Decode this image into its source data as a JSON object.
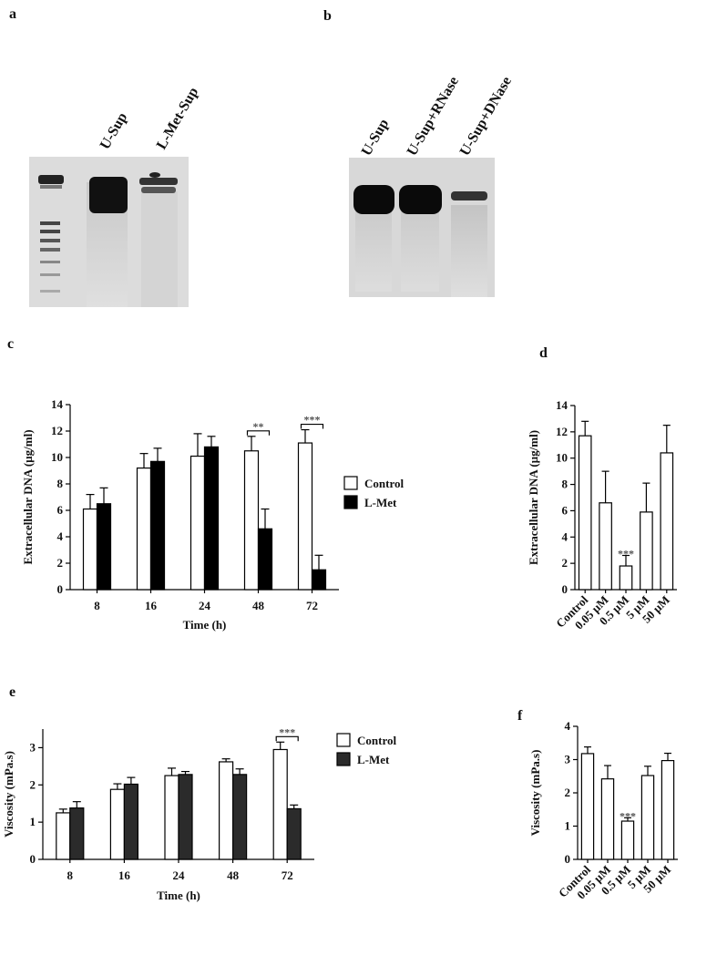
{
  "panels": {
    "a": {
      "label": "a",
      "lanes": [
        "U-Sup",
        "L-Met-Sup"
      ]
    },
    "b": {
      "label": "b",
      "lanes": [
        "U-Sup",
        "U-Sup+RNase",
        "U-Sup+DNase"
      ]
    }
  },
  "chart_data": [
    {
      "type": "bar",
      "panel_label": "c",
      "ylabel": "Extracellular DNA (µg/ml)",
      "xlabel": "Time (h)",
      "categories": [
        "8",
        "16",
        "24",
        "48",
        "72"
      ],
      "series": [
        {
          "name": "Control",
          "color": "#ffffff",
          "values": [
            6.1,
            9.2,
            10.1,
            10.5,
            11.1
          ],
          "errors": [
            1.1,
            1.1,
            1.7,
            1.1,
            1.0
          ]
        },
        {
          "name": "L-Met",
          "color": "#000000",
          "values": [
            6.5,
            9.7,
            10.8,
            4.6,
            1.5
          ],
          "errors": [
            1.2,
            1.0,
            0.8,
            1.5,
            1.1
          ]
        }
      ],
      "ylim": [
        0,
        14
      ],
      "yticks": [
        0,
        2,
        4,
        6,
        8,
        10,
        12,
        14
      ],
      "annotations": [
        {
          "text": "**",
          "x": "48"
        },
        {
          "text": "***",
          "x": "72"
        }
      ]
    },
    {
      "type": "bar",
      "panel_label": "d",
      "ylabel": "Extracellular DNA (µg/ml)",
      "categories": [
        "Control",
        "0.05 µM",
        "0.5 µM",
        "5 µM",
        "50 µM"
      ],
      "series": [
        {
          "color": "#ffffff",
          "values": [
            11.7,
            6.6,
            1.8,
            5.9,
            10.4
          ],
          "errors": [
            1.1,
            2.4,
            0.8,
            2.2,
            2.1
          ]
        }
      ],
      "ylim": [
        0,
        14
      ],
      "yticks": [
        0,
        2,
        4,
        6,
        8,
        10,
        12,
        14
      ],
      "annotations": [
        {
          "text": "***",
          "x": "0.5 µM"
        }
      ]
    },
    {
      "type": "bar",
      "panel_label": "e",
      "ylabel": "Viscosity (mPa.s)",
      "xlabel": "Time (h)",
      "categories": [
        "8",
        "16",
        "24",
        "48",
        "72"
      ],
      "series": [
        {
          "name": "Control",
          "color": "#ffffff",
          "values": [
            1.25,
            1.88,
            2.25,
            2.62,
            2.95
          ],
          "errors": [
            0.1,
            0.15,
            0.2,
            0.08,
            0.2
          ]
        },
        {
          "name": "L-Met",
          "color": "#2b2b2b",
          "values": [
            1.38,
            2.02,
            2.28,
            2.28,
            1.36
          ],
          "errors": [
            0.17,
            0.18,
            0.08,
            0.15,
            0.1
          ]
        }
      ],
      "ylim": [
        0,
        3.5
      ],
      "yticks": [
        0,
        1,
        2,
        3
      ],
      "annotations": [
        {
          "text": "***",
          "x": "72"
        }
      ]
    },
    {
      "type": "bar",
      "panel_label": "f",
      "ylabel": "Viscosity (mPa.s)",
      "categories": [
        "Control",
        "0.05 µM",
        "0.5 µM",
        "5 µM",
        "50 µM"
      ],
      "series": [
        {
          "color": "#ffffff",
          "values": [
            3.18,
            2.42,
            1.15,
            2.52,
            2.97
          ],
          "errors": [
            0.2,
            0.4,
            0.1,
            0.28,
            0.22
          ]
        }
      ],
      "ylim": [
        0,
        4
      ],
      "yticks": [
        0,
        1,
        2,
        3,
        4
      ],
      "annotations": [
        {
          "text": "***",
          "x": "0.5 µM"
        }
      ]
    }
  ]
}
